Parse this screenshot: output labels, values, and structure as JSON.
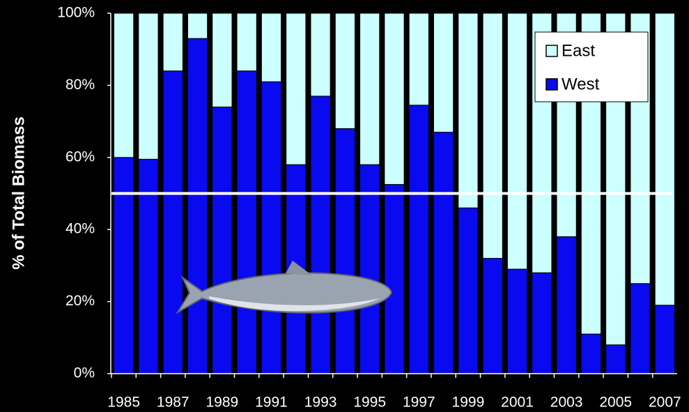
{
  "chart_data": {
    "type": "stacked-bar",
    "y_label": "% of Total Biomass",
    "categories": [
      "1985",
      null,
      "1987",
      null,
      "1989",
      null,
      "1991",
      null,
      "1993",
      null,
      "1995",
      null,
      "1997",
      null,
      "1999",
      null,
      "2001",
      null,
      "2003",
      null,
      "2005",
      null,
      "2007"
    ],
    "series": [
      {
        "name": "West",
        "color": "#0a0af0",
        "values": [
          60,
          59.5,
          84,
          93,
          74,
          84,
          81,
          58,
          77,
          68,
          58,
          52.5,
          74.5,
          67,
          46,
          32,
          29,
          28,
          38,
          11,
          8,
          25,
          19
        ]
      },
      {
        "name": "East",
        "color": "#ccffff",
        "values": [
          40,
          40.5,
          16,
          7,
          26,
          16,
          19,
          42,
          23,
          32,
          42,
          47.5,
          25.5,
          33,
          54,
          68,
          71,
          72,
          62,
          89,
          92,
          75,
          81
        ]
      }
    ],
    "ylim": [
      0,
      100
    ],
    "yticks": [
      {
        "value": 0,
        "label": "0%"
      },
      {
        "value": 20,
        "label": "20%"
      },
      {
        "value": 40,
        "label": "40%"
      },
      {
        "value": 60,
        "label": "60%"
      },
      {
        "value": 80,
        "label": "80%"
      },
      {
        "value": 100,
        "label": "100%"
      }
    ],
    "reference_line": 50,
    "reference_line_color": "#ffffff",
    "legend": "top-right"
  }
}
